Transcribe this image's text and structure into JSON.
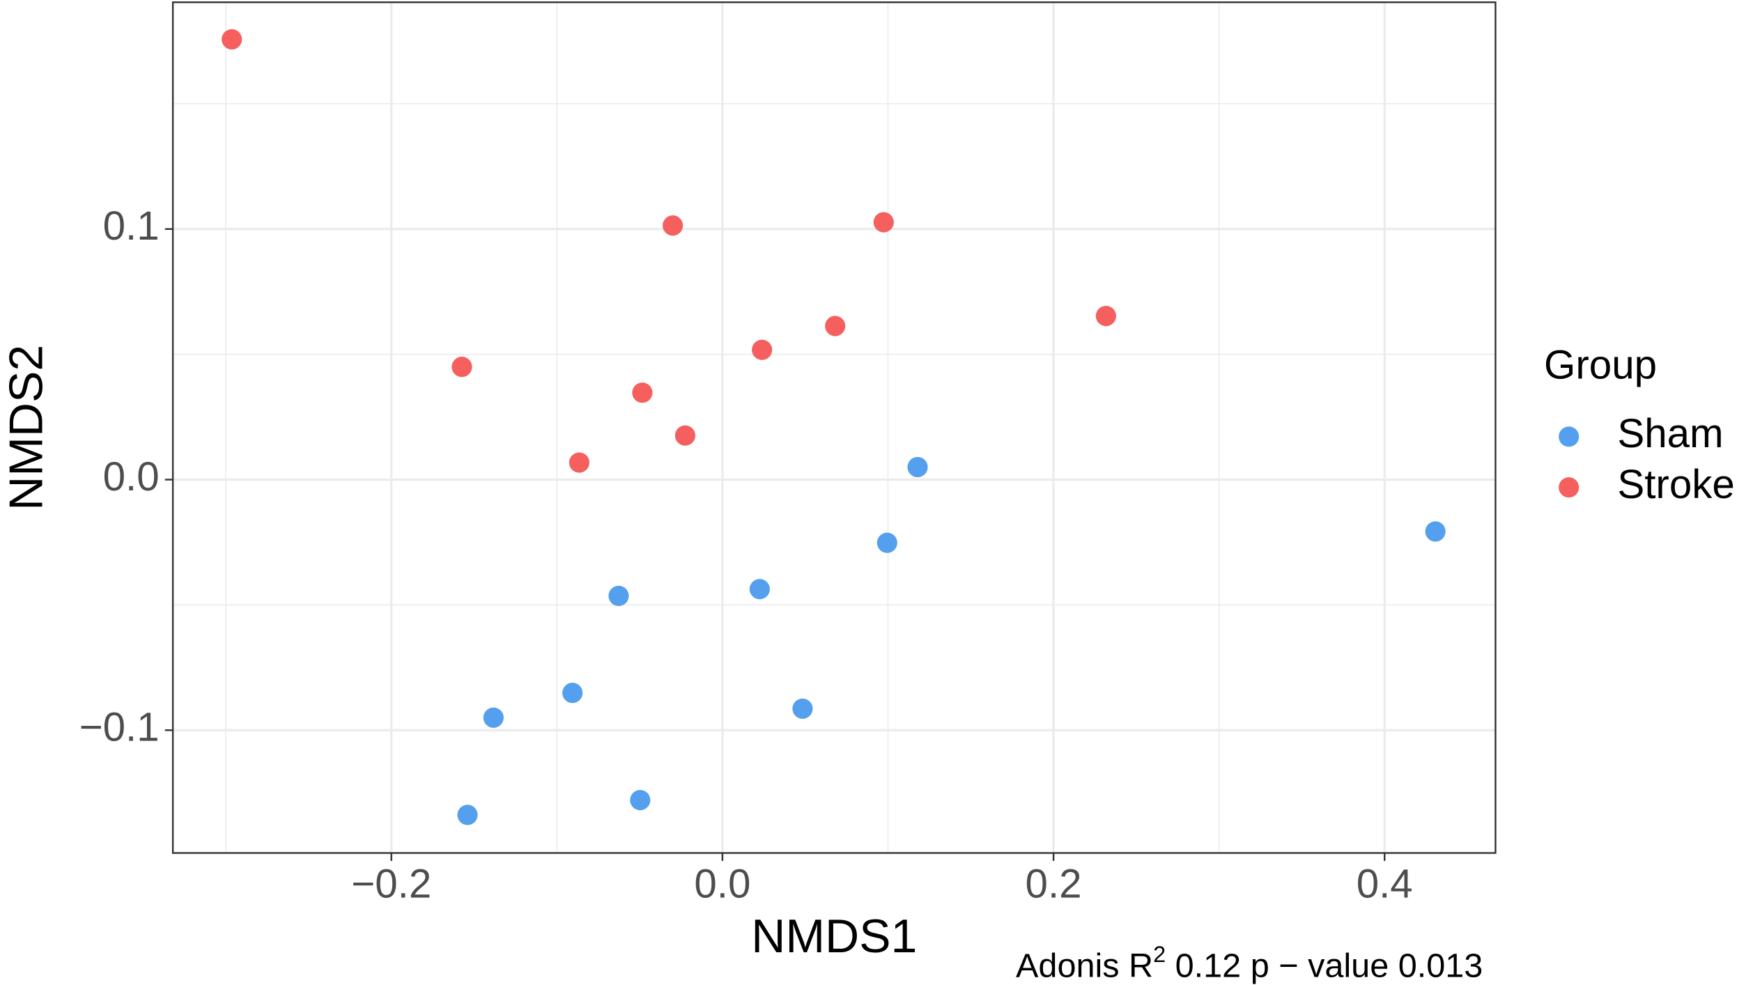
{
  "chart_data": {
    "type": "scatter",
    "x_label": "NMDS1",
    "y_label": "NMDS2",
    "legend_title": "Group",
    "legend_position": "right",
    "annotation": [
      "Adonis R",
      "2",
      " 0.12  p − value 0.013"
    ],
    "xlim": [
      -0.332,
      0.467
    ],
    "ylim": [
      -0.149,
      0.1905
    ],
    "xticks": [
      {
        "value": -0.2,
        "label": "−0.2"
      },
      {
        "value": 0,
        "label": "0.0"
      },
      {
        "value": 0.2,
        "label": "0.2"
      },
      {
        "value": 0.4,
        "label": "0.4"
      }
    ],
    "yticks": [
      {
        "value": -0.1,
        "label": "−0.1"
      },
      {
        "value": 0,
        "label": "0.0"
      },
      {
        "value": 0.1,
        "label": "0.1"
      }
    ],
    "grid": true,
    "series": [
      {
        "name": "Sham",
        "color": "#55A0EE",
        "x": [
          0.1179,
          0.4307,
          0.0995,
          0.0225,
          -0.0627,
          -0.0906,
          0.0484,
          -0.1383,
          -0.0497,
          -0.154
        ],
        "y": [
          0.005,
          -0.0207,
          -0.0252,
          -0.0437,
          -0.0464,
          -0.0851,
          -0.0914,
          -0.095,
          -0.1279,
          -0.1338
        ]
      },
      {
        "name": "Stroke",
        "color": "#F5605F",
        "x": [
          -0.2964,
          -0.03,
          0.0974,
          0.2317,
          0.0681,
          0.0239,
          -0.1574,
          -0.0484,
          -0.0225,
          -0.0865
        ],
        "y": [
          0.1757,
          0.1014,
          0.1027,
          0.0653,
          0.0613,
          0.0518,
          0.045,
          0.0347,
          0.0176,
          0.0068
        ]
      }
    ]
  }
}
